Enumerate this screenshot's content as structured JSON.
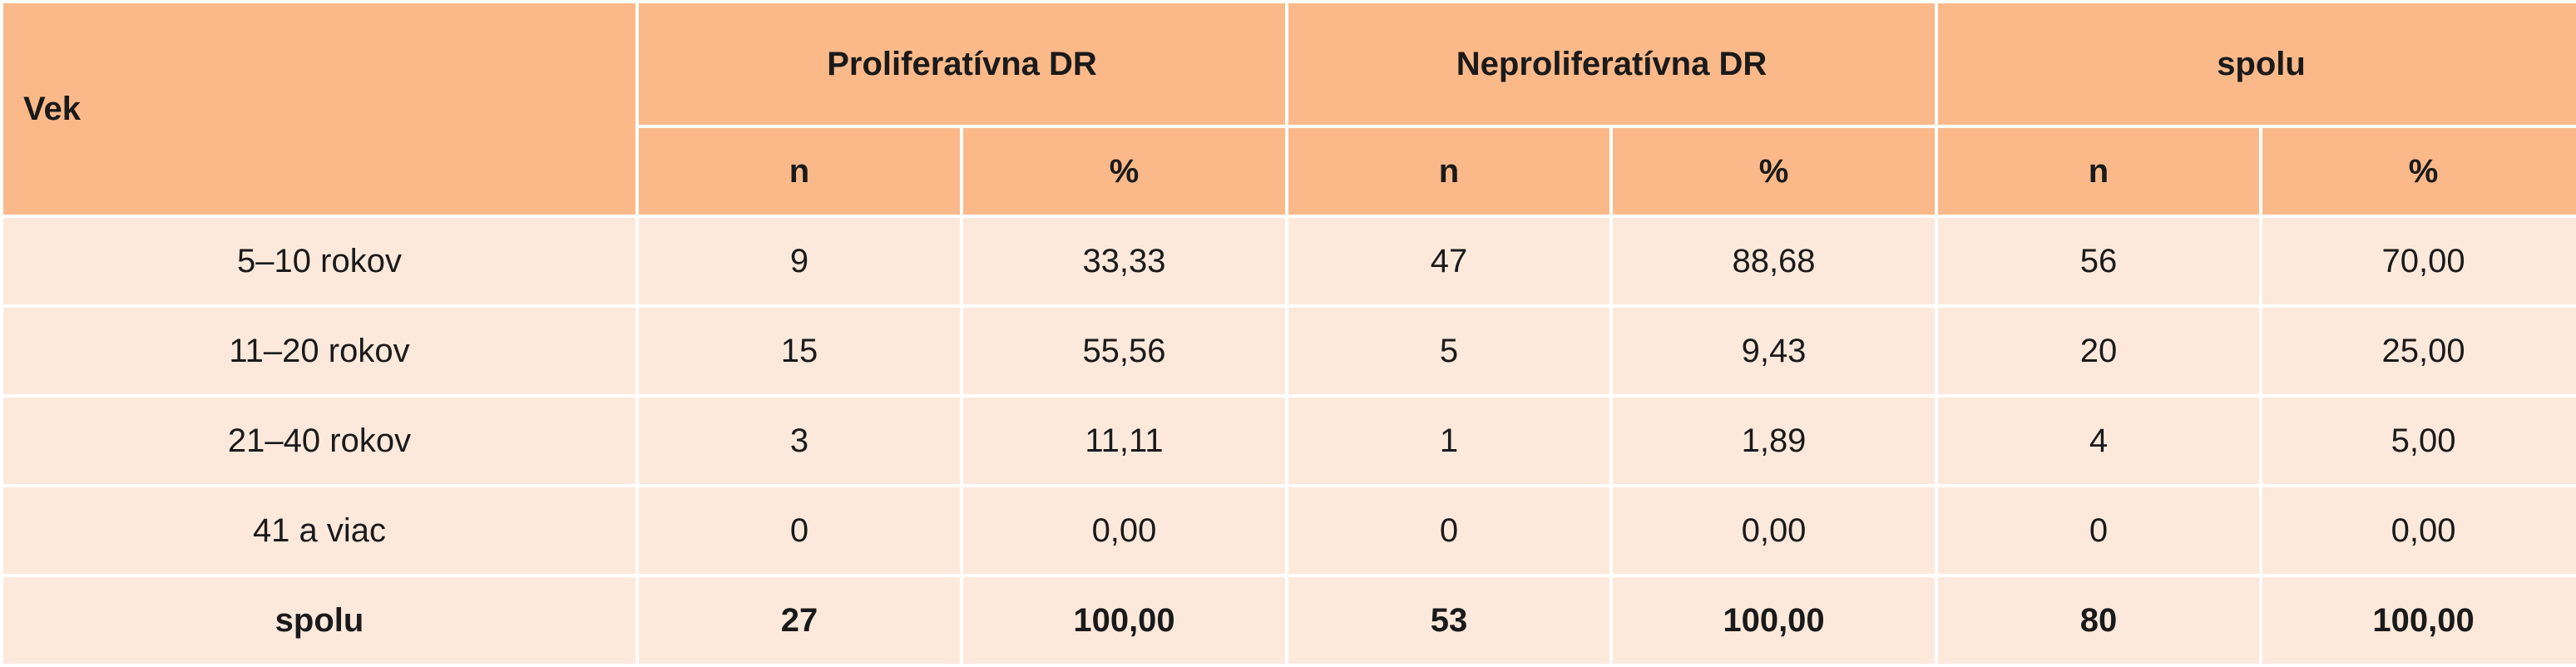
{
  "header": {
    "vek": "Vek",
    "groups": [
      "Proliferatívna DR",
      "Neproliferatívna DR",
      "spolu"
    ],
    "sub": [
      "n",
      "%",
      "n",
      "%",
      "n",
      "%"
    ]
  },
  "rows": [
    {
      "label": "5–10 rokov",
      "cells": [
        "9",
        "33,33",
        "47",
        "88,68",
        "56",
        "70,00"
      ]
    },
    {
      "label": "11–20 rokov",
      "cells": [
        "15",
        "55,56",
        "5",
        "9,43",
        "20",
        "25,00"
      ]
    },
    {
      "label": "21–40 rokov",
      "cells": [
        "3",
        "11,11",
        "1",
        "1,89",
        "4",
        "5,00"
      ]
    },
    {
      "label": "41 a viac",
      "cells": [
        "0",
        "0,00",
        "0",
        "0,00",
        "0",
        "0,00"
      ]
    }
  ],
  "total": {
    "label": "spolu",
    "cells": [
      "27",
      "100,00",
      "53",
      "100,00",
      "80",
      "100,00"
    ]
  },
  "colors": {
    "header_bg": "#fbb98a",
    "row_bg": "#fde9dc"
  }
}
